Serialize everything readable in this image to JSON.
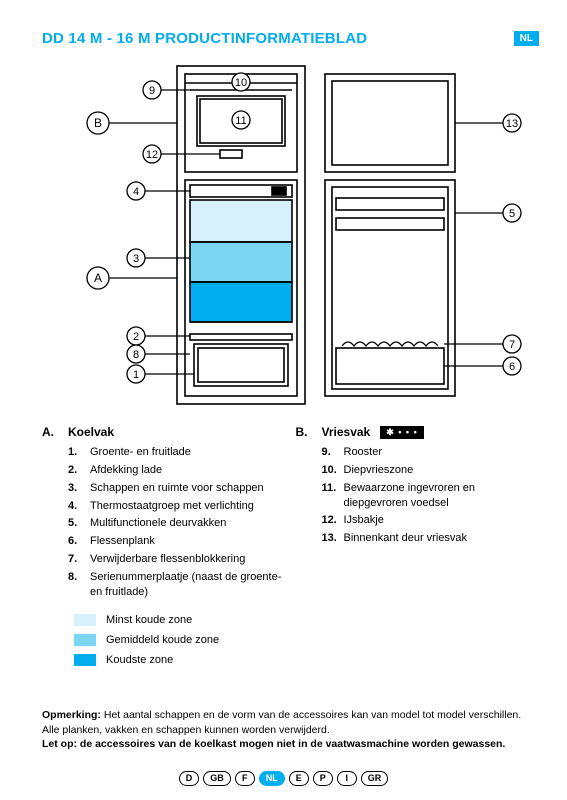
{
  "header": {
    "title": "DD 14 M - 16 M PRODUCTINFORMATIEBLAD",
    "badge": "NL",
    "title_color": "#00adef"
  },
  "diagram": {
    "type": "infographic",
    "background_color": "#ffffff",
    "stroke_color": "#000000",
    "stroke_width": 1.5,
    "zone_colors": {
      "least_cold": "#d6f1fb",
      "medium_cold": "#7cd5f3",
      "coldest": "#00adef"
    },
    "labels": {
      "A": "A",
      "B": "B",
      "1": "1",
      "2": "2",
      "3": "3",
      "4": "4",
      "5": "5",
      "6": "6",
      "7": "7",
      "8": "8",
      "9": "9",
      "10": "10",
      "11": "11",
      "12": "12",
      "13": "13"
    }
  },
  "section_a": {
    "letter": "A.",
    "name": "Koelvak",
    "items": [
      {
        "n": "1.",
        "t": "Groente- en fruitlade"
      },
      {
        "n": "2.",
        "t": "Afdekking lade"
      },
      {
        "n": "3.",
        "t": "Schappen en ruimte voor schappen"
      },
      {
        "n": "4.",
        "t": "Thermostaatgroep met verlichting"
      },
      {
        "n": "5.",
        "t": "Multifunctionele deurvakken"
      },
      {
        "n": "6.",
        "t": "Flessenplank"
      },
      {
        "n": "7.",
        "t": "Verwijderbare flessenblokkering"
      },
      {
        "n": "8.",
        "t": "Serienummerplaatje (naast de groente- en fruitlade)"
      }
    ]
  },
  "section_b": {
    "letter": "B.",
    "name": "Vriesvak",
    "star": "✱ • • •",
    "items": [
      {
        "n": "9.",
        "t": "Rooster"
      },
      {
        "n": "10.",
        "t": "Diepvrieszone"
      },
      {
        "n": "11.",
        "t": "Bewaarzone ingevroren en diepgevroren voedsel"
      },
      {
        "n": "12.",
        "t": "IJsbakje"
      },
      {
        "n": "13.",
        "t": "Binnenkant deur vriesvak"
      }
    ]
  },
  "legend": [
    {
      "color": "#d6f1fb",
      "label": "Minst koude zone"
    },
    {
      "color": "#7cd5f3",
      "label": "Gemiddeld koude zone"
    },
    {
      "color": "#00adef",
      "label": "Koudste zone"
    }
  ],
  "notes": {
    "line1_bold": "Opmerking:",
    "line1_rest": " Het aantal schappen en de vorm van de accessoires kan van model tot model verschillen.",
    "line2": "Alle planken, vakken en schappen kunnen worden verwijderd.",
    "line3": "Let op: de accessoires van de koelkast mogen niet in de vaatwasmachine worden gewassen."
  },
  "footer_langs": [
    "D",
    "GB",
    "F",
    "NL",
    "E",
    "P",
    "I",
    "GR"
  ],
  "footer_active": "NL"
}
